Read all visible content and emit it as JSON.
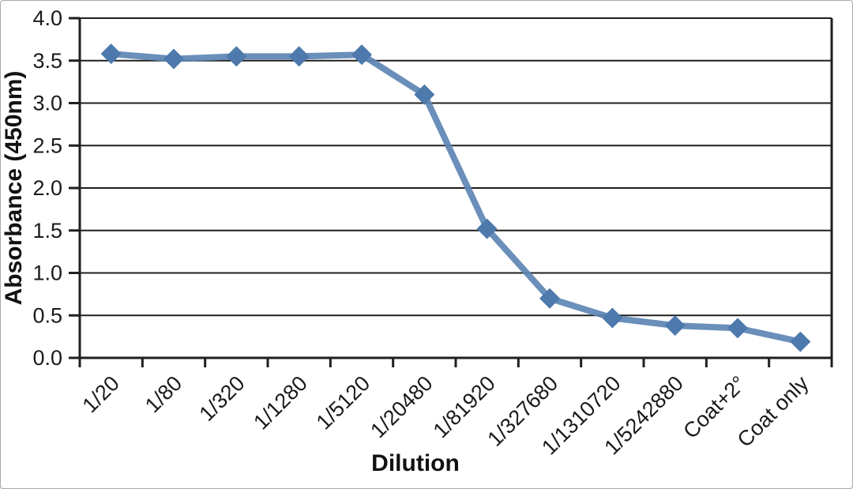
{
  "chart_data": {
    "type": "line",
    "categories": [
      "1/20",
      "1/80",
      "1/320",
      "1/1280",
      "1/5120",
      "1/20480",
      "1/81920",
      "1/327680",
      "1/1310720",
      "1/5242880",
      "Coat+2°",
      "Coat only"
    ],
    "series": [
      {
        "name": "",
        "values": [
          3.58,
          3.52,
          3.55,
          3.55,
          3.57,
          3.1,
          1.52,
          0.7,
          0.47,
          0.38,
          0.35,
          0.19
        ]
      }
    ],
    "xlabel": "Dilution",
    "ylabel": "Absorbance (450nm)",
    "ylim": [
      0.0,
      4.0
    ],
    "yticks": [
      "0.0",
      "0.5",
      "1.0",
      "1.5",
      "2.0",
      "2.5",
      "3.0",
      "3.5",
      "4.0"
    ],
    "ytick_step": 0.5,
    "grid": true,
    "legend": "none",
    "marker": "diamond",
    "x_label_rotation_deg": -45,
    "colors": {
      "line": "#5d85b4",
      "marker": "#4d79ac",
      "axis": "#1f1f1f",
      "grid": "#1f1f1f",
      "text": "#1a1a1a",
      "background": "#ffffff",
      "frame_border": "#a9a9a9"
    }
  }
}
